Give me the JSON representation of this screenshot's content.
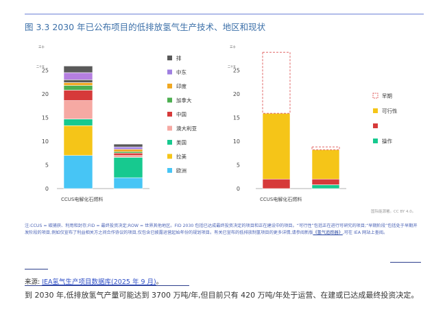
{
  "figure": {
    "title": "图 3.3 2030 年已公布项目的低排放氢气生产技术、地区和现状",
    "credit": "国际能源署。CC BY 4.0。",
    "note_prefix": "注:CCUS = 碳捕获、利用和封存;FID = 最终投资决定;ROW = 世界其他地区。FID 2030 包括已达成最终投资决定的项目和正在建设中的项目。“可行性”包括正在进行可研究的项目;“早期阶段”包括处于早期开发阶段的项目,例如仅宣布了利益相关方之间合作协议的项目,仅包含已披露运营起始年份的规划项目。有关已宣布的低排放制氢项目的更多详情,请参阅新版",
    "note_link": "《氢气追踪器》",
    "note_suffix": ",可在 IEA 网站上查阅。",
    "source_label": "来源:",
    "source_link": "IEA氢气生产项目数据库(2025 年 9 月)",
    "source_suffix": "。",
    "summary": "到 2030 年,低排放氢气产量可能达到 3700 万吨/年,但目前只有 420 万吨/年处于运营、在建或已达成最终投资决定。"
  },
  "chart_data": [
    {
      "type": "bar",
      "stacked": true,
      "categories": [
        "CCUS",
        "电解化石燃料"
      ],
      "category_label": "CCUS电解化石燃料",
      "ylim": [
        0,
        30
      ],
      "yticks": [
        0,
        5,
        10,
        15,
        20,
        25
      ],
      "top_label": "三十",
      "sub_label": "二十五",
      "legend_position": "right",
      "series": [
        {
          "name": "欧洲",
          "color": "#47c5f5",
          "values": [
            7.0,
            2.3
          ]
        },
        {
          "name": "拉美",
          "color": "#f5c518",
          "values": [
            6.3,
            0.0
          ]
        },
        {
          "name": "美国",
          "color": "#17c98f",
          "values": [
            1.4,
            4.3
          ]
        },
        {
          "name": "澳大利亚",
          "color": "#f6a9a3",
          "values": [
            3.9,
            0.4
          ]
        },
        {
          "name": "中国",
          "color": "#d63a3a",
          "values": [
            2.2,
            0.5
          ]
        },
        {
          "name": "加拿大",
          "color": "#4caf50",
          "values": [
            1.0,
            0.3
          ]
        },
        {
          "name": "印度",
          "color": "#f0a822",
          "values": [
            0.6,
            0.5
          ]
        },
        {
          "name": "中东",
          "color": "#9f7fe0",
          "values": [
            0.0,
            0.5
          ]
        },
        {
          "name": "排",
          "color": "#595959",
          "values": [
            0.6,
            0.6
          ]
        }
      ],
      "extra_segments": [
        {
          "category": "CCUS",
          "color": "#b57fe0",
          "value": 1.5
        },
        {
          "category": "CCUS",
          "color": "#595959",
          "value": 1.4
        }
      ]
    },
    {
      "type": "bar",
      "stacked": true,
      "categories": [
        "CCUS",
        "电解化石燃料"
      ],
      "category_label": "CCUS电解化石燃料",
      "ylim": [
        0,
        30
      ],
      "yticks": [
        0,
        5,
        10,
        15,
        20,
        25
      ],
      "top_label": "三十",
      "sub_label": "二十五",
      "legend_position": "right",
      "series": [
        {
          "name": "操作",
          "color": "#17c98f",
          "values": [
            0.0,
            0.8
          ]
        },
        {
          "name": "",
          "color": "#d63a3a",
          "values": [
            2.0,
            1.2
          ]
        },
        {
          "name": "可行性",
          "color": "#f5c518",
          "values": [
            13.9,
            6.2
          ]
        },
        {
          "name": "早期",
          "color": "#e06666",
          "dashed": true,
          "values": [
            12.9,
            0.6
          ]
        }
      ]
    }
  ]
}
